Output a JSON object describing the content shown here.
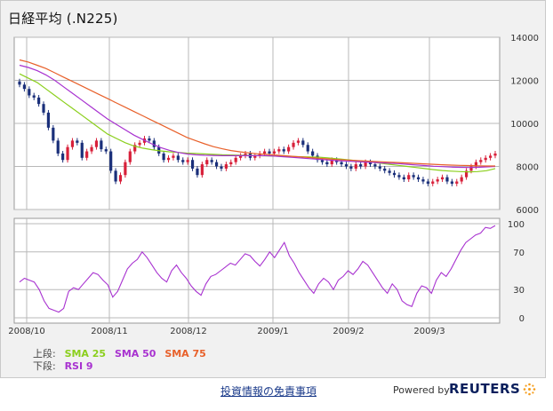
{
  "title": "日経平均 (.N225)",
  "legend": {
    "upper_label": "上段:",
    "lower_label": "下段:",
    "items": [
      {
        "label": "SMA 25",
        "color": "#8bcf1c"
      },
      {
        "label": "SMA 50",
        "color": "#a832d0"
      },
      {
        "label": "SMA 75",
        "color": "#e8602a"
      },
      {
        "label": "RSI 9",
        "color": "#a832d0"
      }
    ]
  },
  "footer": {
    "disclaimer": "投資情報の免責事項",
    "powered_by": "Powered by",
    "brand": "REUTERS"
  },
  "colors": {
    "up_candle": "#d8203a",
    "down_candle": "#1a2f7a",
    "grid": "#b8b8b8",
    "panel_bg": "#ffffff"
  },
  "chart_data": [
    {
      "type": "candlestick",
      "x_ticks": [
        "2008/10",
        "2008/11",
        "2008/12",
        "2009/1",
        "2009/2",
        "2009/3"
      ],
      "y_ticks": [
        6000,
        8000,
        10000,
        12000,
        14000
      ],
      "ylim": [
        6000,
        14000
      ],
      "grid": true,
      "close": [
        11800,
        11600,
        11300,
        11200,
        10900,
        10500,
        9800,
        9200,
        8600,
        8300,
        8900,
        9200,
        9100,
        8400,
        8700,
        8900,
        9200,
        8800,
        8700,
        7800,
        7300,
        7600,
        8200,
        8700,
        9000,
        9100,
        9300,
        9200,
        8900,
        8600,
        8300,
        8400,
        8500,
        8300,
        8200,
        8300,
        7900,
        7600,
        8100,
        8300,
        8200,
        8000,
        7900,
        8100,
        8200,
        8400,
        8500,
        8600,
        8400,
        8500,
        8600,
        8700,
        8600,
        8700,
        8800,
        8700,
        8900,
        9100,
        9200,
        9000,
        8700,
        8500,
        8300,
        8200,
        8100,
        8300,
        8200,
        8100,
        8000,
        7900,
        8100,
        8000,
        8200,
        8100,
        8000,
        7900,
        7800,
        7700,
        7600,
        7500,
        7400,
        7600,
        7500,
        7400,
        7300,
        7200,
        7300,
        7400,
        7500,
        7300,
        7200,
        7300,
        7500,
        7800,
        8000,
        8200,
        8300,
        8400,
        8500,
        8600
      ],
      "series": [
        {
          "name": "SMA 25",
          "values": [
            12300,
            12100,
            11900,
            11600,
            11300,
            11000,
            10700,
            10400,
            10100,
            9800,
            9500,
            9300,
            9100,
            8950,
            8850,
            8780,
            8720,
            8680,
            8650,
            8620,
            8600,
            8580,
            8560,
            8540,
            8530,
            8520,
            8510,
            8500,
            8490,
            8480,
            8470,
            8460,
            8450,
            8440,
            8430,
            8400,
            8360,
            8320,
            8280,
            8240,
            8200,
            8150,
            8100,
            8050,
            8000,
            7950,
            7900,
            7850,
            7810,
            7780,
            7760,
            7750,
            7760,
            7800,
            7900
          ]
        },
        {
          "name": "SMA 50",
          "values": [
            12700,
            12600,
            12450,
            12250,
            12000,
            11700,
            11400,
            11100,
            10800,
            10500,
            10200,
            9950,
            9700,
            9450,
            9250,
            9050,
            8880,
            8750,
            8650,
            8580,
            8540,
            8520,
            8510,
            8500,
            8500,
            8500,
            8500,
            8500,
            8500,
            8480,
            8450,
            8420,
            8390,
            8360,
            8330,
            8300,
            8270,
            8250,
            8230,
            8210,
            8190,
            8170,
            8150,
            8130,
            8100,
            8070,
            8040,
            8010,
            7990,
            7970,
            7960,
            7950,
            7960,
            7980,
            8000
          ]
        },
        {
          "name": "SMA 75",
          "values": [
            12950,
            12850,
            12700,
            12550,
            12350,
            12150,
            11950,
            11750,
            11550,
            11350,
            11150,
            10950,
            10750,
            10550,
            10350,
            10150,
            9950,
            9750,
            9550,
            9350,
            9200,
            9050,
            8920,
            8820,
            8740,
            8680,
            8630,
            8590,
            8560,
            8530,
            8500,
            8470,
            8440,
            8410,
            8380,
            8350,
            8320,
            8300,
            8280,
            8260,
            8240,
            8220,
            8200,
            8180,
            8160,
            8140,
            8120,
            8100,
            8080,
            8060,
            8050,
            8040,
            8030,
            8020,
            8020
          ]
        }
      ]
    },
    {
      "type": "line",
      "name": "RSI 9",
      "y_ticks": [
        0,
        30,
        70,
        100
      ],
      "ylim": [
        0,
        100
      ],
      "grid": true,
      "values": [
        38,
        42,
        40,
        38,
        30,
        18,
        10,
        8,
        6,
        10,
        28,
        32,
        30,
        36,
        42,
        48,
        46,
        40,
        35,
        22,
        28,
        40,
        52,
        58,
        62,
        70,
        64,
        56,
        48,
        42,
        38,
        50,
        56,
        48,
        42,
        34,
        28,
        24,
        36,
        44,
        46,
        50,
        54,
        58,
        56,
        62,
        68,
        66,
        60,
        55,
        62,
        70,
        64,
        72,
        80,
        66,
        58,
        48,
        40,
        32,
        26,
        36,
        42,
        38,
        30,
        40,
        44,
        50,
        46,
        52,
        60,
        56,
        48,
        40,
        32,
        26,
        36,
        30,
        18,
        14,
        12,
        26,
        34,
        32,
        26,
        40,
        48,
        44,
        52,
        62,
        72,
        80,
        84,
        88,
        90,
        96,
        95,
        98
      ]
    }
  ]
}
